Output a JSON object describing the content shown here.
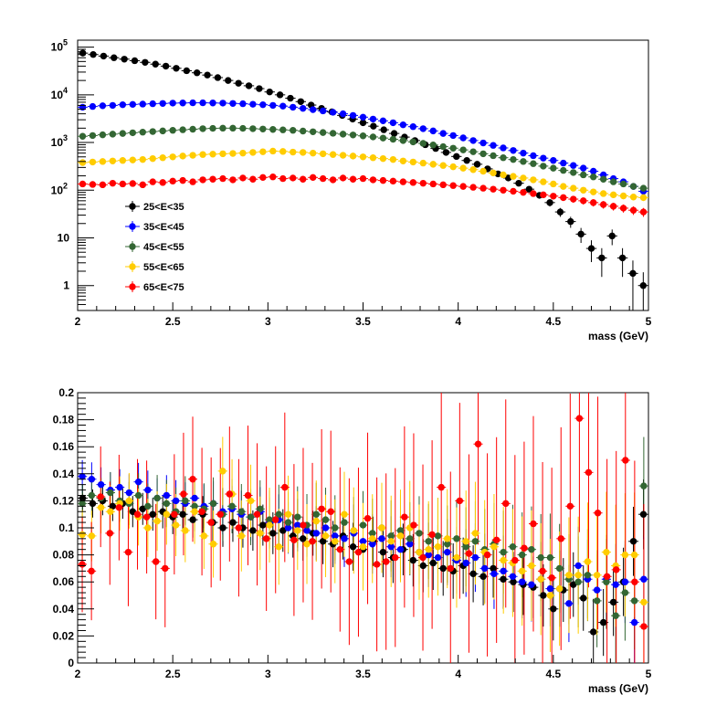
{
  "chart_data": [
    {
      "type": "scatter",
      "title": "",
      "xlabel": "mass (GeV)",
      "ylabel": "",
      "xlim": [
        2,
        5
      ],
      "ylim": [
        0.3,
        140000
      ],
      "yscale": "log",
      "grid": false,
      "legend_position": "inside-left",
      "xticks": [
        "2",
        "2.5",
        "3",
        "3.5",
        "4",
        "4.5",
        "5"
      ],
      "yticks": [
        {
          "v": 1,
          "base": "1",
          "exp": ""
        },
        {
          "v": 10,
          "base": "10",
          "exp": ""
        },
        {
          "v": 100,
          "base": "10",
          "exp": "2"
        },
        {
          "v": 1000,
          "base": "10",
          "exp": "3"
        },
        {
          "v": 10000,
          "base": "10",
          "exp": "4"
        },
        {
          "v": 100000,
          "base": "10",
          "exp": "5"
        }
      ],
      "series": [
        {
          "name": "25<E<35",
          "color": "#000000",
          "values": [
            75000,
            70000,
            65000,
            60000,
            56000,
            52000,
            48000,
            44000,
            40000,
            36000,
            32000,
            29000,
            26000,
            23000,
            20000,
            17500,
            15500,
            13500,
            11500,
            10000,
            8500,
            7200,
            6100,
            5200,
            4400,
            3700,
            3100,
            2600,
            2200,
            1850,
            1550,
            1300,
            1100,
            900,
            750,
            620,
            510,
            420,
            350,
            280,
            220,
            180,
            140,
            105,
            78,
            55,
            35,
            22,
            12,
            6,
            3.8,
            11,
            3.8,
            1.8,
            1.0
          ]
        },
        {
          "name": "35<E<45",
          "color": "#0000ff",
          "values": [
            5500,
            5700,
            5900,
            6000,
            6200,
            6300,
            6400,
            6500,
            6600,
            6700,
            6750,
            6800,
            6800,
            6750,
            6700,
            6600,
            6500,
            6350,
            6200,
            6000,
            5800,
            5500,
            5200,
            4900,
            4600,
            4300,
            4000,
            3700,
            3400,
            3100,
            2850,
            2600,
            2350,
            2150,
            1950,
            1750,
            1550,
            1400,
            1250,
            1100,
            980,
            870,
            770,
            680,
            600,
            530,
            470,
            420,
            370,
            330,
            290,
            250,
            210,
            175,
            150,
            120,
            95
          ]
        },
        {
          "name": "45<E<55",
          "color": "#336633",
          "values": [
            1350,
            1400,
            1450,
            1500,
            1550,
            1600,
            1650,
            1700,
            1750,
            1800,
            1850,
            1900,
            1950,
            1980,
            2000,
            2000,
            1980,
            1950,
            1920,
            1880,
            1840,
            1800,
            1740,
            1680,
            1620,
            1560,
            1500,
            1440,
            1380,
            1310,
            1240,
            1170,
            1100,
            1030,
            960,
            890,
            820,
            760,
            700,
            640,
            580,
            530,
            480,
            440,
            400,
            360,
            320,
            290,
            260,
            235,
            210,
            190,
            170,
            150,
            135,
            120,
            110
          ]
        },
        {
          "name": "55<E<65",
          "color": "#ffcc00",
          "values": [
            380,
            390,
            400,
            410,
            420,
            430,
            440,
            460,
            480,
            500,
            520,
            540,
            560,
            570,
            580,
            590,
            600,
            620,
            640,
            660,
            650,
            630,
            620,
            600,
            580,
            560,
            540,
            520,
            500,
            480,
            460,
            440,
            410,
            390,
            370,
            350,
            330,
            310,
            290,
            270,
            250,
            230,
            210,
            195,
            180,
            165,
            150,
            135,
            120,
            110,
            100,
            92,
            85,
            80,
            76,
            72,
            70
          ]
        },
        {
          "name": "65<E<75",
          "color": "#ff0000",
          "values": [
            135,
            132,
            130,
            140,
            135,
            138,
            130,
            150,
            145,
            155,
            160,
            150,
            165,
            170,
            175,
            165,
            180,
            170,
            185,
            190,
            175,
            180,
            170,
            185,
            175,
            165,
            180,
            170,
            175,
            165,
            160,
            155,
            150,
            145,
            140,
            135,
            130,
            125,
            120,
            115,
            110,
            105,
            100,
            95,
            90,
            85,
            80,
            75,
            70,
            65,
            60,
            55,
            50,
            46,
            42,
            38,
            35
          ]
        }
      ]
    },
    {
      "type": "scatter",
      "title": "",
      "xlabel": "mass (GeV)",
      "ylabel": "",
      "xlim": [
        2,
        5
      ],
      "ylim": [
        0,
        0.2
      ],
      "yscale": "linear",
      "grid": false,
      "xticks": [
        "2",
        "2.5",
        "3",
        "3.5",
        "4",
        "4.5",
        "5"
      ],
      "yticks": [
        "0",
        "0.02",
        "0.04",
        "0.06",
        "0.08",
        "0.1",
        "0.12",
        "0.14",
        "0.16",
        "0.18",
        "0.2"
      ],
      "series": [
        {
          "name": "25<E<35",
          "color": "#000000",
          "values": [
            0.122,
            0.118,
            0.12,
            0.116,
            0.118,
            0.112,
            0.114,
            0.11,
            0.112,
            0.108,
            0.11,
            0.106,
            0.11,
            0.104,
            0.1,
            0.104,
            0.1,
            0.098,
            0.102,
            0.096,
            0.098,
            0.094,
            0.092,
            0.096,
            0.09,
            0.088,
            0.094,
            0.086,
            0.084,
            0.09,
            0.082,
            0.078,
            0.084,
            0.076,
            0.072,
            0.074,
            0.07,
            0.068,
            0.072,
            0.066,
            0.064,
            0.07,
            0.062,
            0.06,
            0.058,
            0.056,
            0.05,
            0.04,
            0.054,
            0.058,
            0.048,
            0.023,
            0.03,
            0.045,
            0.06,
            0.09,
            0.11
          ]
        },
        {
          "name": "35<E<45",
          "color": "#0000ff",
          "values": [
            0.138,
            0.136,
            0.132,
            0.128,
            0.13,
            0.126,
            0.134,
            0.128,
            0.122,
            0.124,
            0.12,
            0.118,
            0.122,
            0.116,
            0.118,
            0.112,
            0.114,
            0.11,
            0.108,
            0.112,
            0.104,
            0.106,
            0.1,
            0.102,
            0.098,
            0.096,
            0.1,
            0.094,
            0.092,
            0.096,
            0.09,
            0.088,
            0.092,
            0.086,
            0.084,
            0.088,
            0.082,
            0.08,
            0.078,
            0.082,
            0.076,
            0.074,
            0.078,
            0.07,
            0.066,
            0.068,
            0.064,
            0.06,
            0.058,
            0.062,
            0.055,
            0.055,
            0.044,
            0.072,
            0.062,
            0.054,
            0.062,
            0.058,
            0.06,
            0.03,
            0.062
          ]
        },
        {
          "name": "45<E<55",
          "color": "#336633",
          "values": [
            0.118,
            0.124,
            0.122,
            0.126,
            0.12,
            0.118,
            0.124,
            0.116,
            0.122,
            0.118,
            0.112,
            0.12,
            0.116,
            0.114,
            0.118,
            0.11,
            0.116,
            0.112,
            0.108,
            0.114,
            0.106,
            0.11,
            0.104,
            0.108,
            0.102,
            0.11,
            0.106,
            0.1,
            0.104,
            0.098,
            0.102,
            0.096,
            0.1,
            0.094,
            0.098,
            0.092,
            0.096,
            0.09,
            0.094,
            0.088,
            0.092,
            0.086,
            0.09,
            0.084,
            0.088,
            0.082,
            0.086,
            0.08,
            0.084,
            0.078,
            0.078,
            0.07,
            0.062,
            0.06,
            0.065,
            0.046,
            0.06,
            0.035,
            0.052,
            0.046,
            0.131
          ]
        },
        {
          "name": "55<E<65",
          "color": "#ffcc00",
          "values": [
            0.095,
            0.094,
            0.115,
            0.112,
            0.118,
            0.12,
            0.108,
            0.1,
            0.105,
            0.11,
            0.102,
            0.098,
            0.112,
            0.094,
            0.088,
            0.142,
            0.125,
            0.094,
            0.12,
            0.096,
            0.102,
            0.086,
            0.11,
            0.098,
            0.088,
            0.105,
            0.094,
            0.09,
            0.11,
            0.098,
            0.086,
            0.092,
            0.1,
            0.09,
            0.094,
            0.1,
            0.082,
            0.084,
            0.086,
            0.092,
            0.078,
            0.09,
            0.096,
            0.082,
            0.086,
            0.076,
            0.074,
            0.068,
            0.072,
            0.062,
            0.05,
            0.055,
            0.065,
            0.065,
            0.075,
            0.065,
            0.082,
            0.072,
            0.08,
            0.08,
            0.045
          ]
        },
        {
          "name": "65<E<75",
          "color": "#ff0000",
          "values": [
            0.073,
            0.068,
            0.123,
            0.096,
            0.115,
            0.082,
            0.11,
            0.108,
            0.075,
            0.07,
            0.11,
            0.125,
            0.136,
            0.112,
            0.104,
            0.11,
            0.125,
            0.1,
            0.124,
            0.11,
            0.092,
            0.106,
            0.13,
            0.091,
            0.102,
            0.09,
            0.114,
            0.112,
            0.084,
            0.075,
            0.082,
            0.107,
            0.073,
            0.075,
            0.078,
            0.108,
            0.102,
            0.078,
            0.095,
            0.13,
            0.07,
            0.12,
            0.081,
            0.162,
            0.08,
            0.091,
            0.118,
            0.076,
            0.085,
            0.103,
            0.068,
            0.063,
            0.092,
            0.116,
            0.181,
            0.141,
            0.111,
            0.064,
            0.069,
            0.15,
            0.06,
            0.027
          ]
        }
      ]
    }
  ]
}
